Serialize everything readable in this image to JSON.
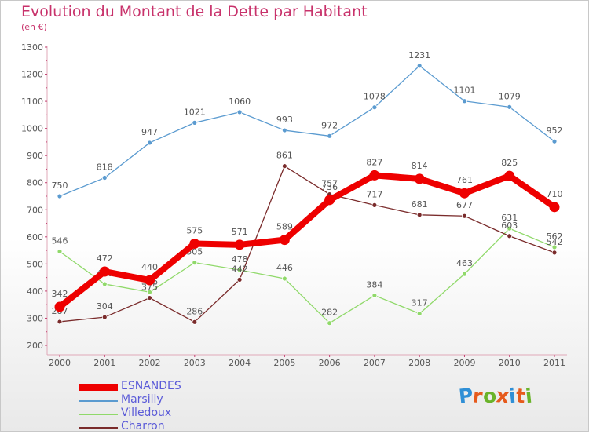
{
  "title": "Evolution du Montant de la Dette par Habitant",
  "subtitle": "(en €)",
  "brand": {
    "text": "Proxiti",
    "letter_colors": [
      "#2f8fd6",
      "#e65a1c",
      "#6ab32a",
      "#e65a1c",
      "#2f8fd6",
      "#e65a1c",
      "#6ab32a"
    ]
  },
  "chart_data": {
    "type": "line",
    "title": "Evolution du Montant de la Dette par Habitant",
    "subtitle": "(en €)",
    "x": [
      "2000",
      "2001",
      "2002",
      "2003",
      "2004",
      "2005",
      "2006",
      "2007",
      "2008",
      "2009",
      "2010",
      "2011"
    ],
    "ylim": [
      200,
      1300
    ],
    "yticks": [
      200,
      300,
      400,
      500,
      600,
      700,
      800,
      900,
      1000,
      1100,
      1200,
      1300
    ],
    "grid": false,
    "legend": "bottom-left",
    "series": [
      {
        "name": "Marsilly",
        "color": "#5b9bd0",
        "values": [
          750,
          818,
          947,
          1021,
          1060,
          993,
          972,
          1078,
          1231,
          1101,
          1079,
          952
        ]
      },
      {
        "name": "Villedoux",
        "color": "#90d96a",
        "values": [
          546,
          426,
          396,
          505,
          478,
          446,
          282,
          384,
          317,
          463,
          631,
          562
        ]
      },
      {
        "name": "Charron",
        "color": "#7a2b2b",
        "values": [
          287,
          304,
          375,
          286,
          442,
          861,
          757,
          717,
          681,
          677,
          603,
          542
        ]
      },
      {
        "name": "ESNANDES",
        "color": "#ee0000",
        "values": [
          342,
          472,
          440,
          575,
          571,
          589,
          736,
          827,
          814,
          761,
          825,
          710
        ]
      }
    ]
  }
}
